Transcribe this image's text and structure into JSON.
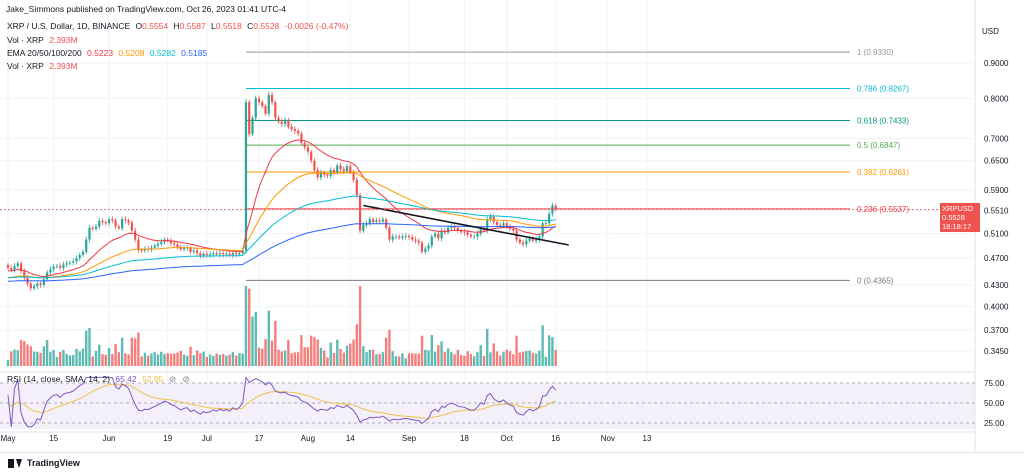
{
  "header": {
    "published": "Jake_Simmons published on TradingView.com, Oct 26, 2023 01:41 UTC-4",
    "symbol": "XRP / U.S. Dollar, 1D, BINANCE",
    "ohlc": {
      "o_label": "O",
      "o": "0.5554",
      "h_label": "H",
      "h": "0.5587",
      "l_label": "L",
      "l": "0.5518",
      "c_label": "C",
      "c": "0.5528",
      "change": "-0.0026 (-0.47%)"
    },
    "vol_label": "Vol · XRP",
    "vol_value": "2.393M",
    "ema_label": "EMA 20/50/100/200",
    "ema_values": [
      "0.5223",
      "0.5208",
      "0.5282",
      "0.5185"
    ],
    "vol2_label": "Vol · XRP",
    "vol2_value": "2.393M",
    "rsi_label": "RSI (14, close, SMA, 14, 2)",
    "rsi_value": "65.42",
    "rsi_ma": "52.95"
  },
  "price_axis": {
    "currency": "USD",
    "current_symbol": "XRPUSD",
    "current_price": "0.5528",
    "countdown": "18:18:17"
  },
  "footer": {
    "brand": "TradingView"
  },
  "colors": {
    "up": "#26a69a",
    "down": "#ef5350",
    "ema20": "#f23645",
    "ema50": "#ff9800",
    "ema100": "#00bcd4",
    "ema200": "#2962ff",
    "rsi": "#7e57c2",
    "rsi_ma": "#f0c24a"
  },
  "chart_data": {
    "type": "candlestick",
    "x_start": "2023-05-01",
    "interval": "1D",
    "y_scale": "log",
    "y_ticks": [
      0.9,
      0.8,
      0.7,
      0.65,
      0.59,
      0.551,
      0.51,
      0.47,
      0.43,
      0.4,
      0.37,
      0.345
    ],
    "y_tick_labels": [
      "0.9000",
      "0.8000",
      "0.7000",
      "0.6500",
      "0.5900",
      "0.5510",
      "0.5100",
      "0.4700",
      "0.4300",
      "0.4000",
      "0.3700",
      "0.3450"
    ],
    "x_ticks": [
      {
        "label": "May",
        "date": "2023-05-01"
      },
      {
        "label": "15",
        "date": "2023-05-15"
      },
      {
        "label": "Jun",
        "date": "2023-06-01"
      },
      {
        "label": "19",
        "date": "2023-06-19"
      },
      {
        "label": "Jul",
        "date": "2023-07-01"
      },
      {
        "label": "17",
        "date": "2023-07-17"
      },
      {
        "label": "Aug",
        "date": "2023-08-01"
      },
      {
        "label": "14",
        "date": "2023-08-14"
      },
      {
        "label": "Sep",
        "date": "2023-09-01"
      },
      {
        "label": "18",
        "date": "2023-09-18"
      },
      {
        "label": "Oct",
        "date": "2023-10-01"
      },
      {
        "label": "16",
        "date": "2023-10-16"
      },
      {
        "label": "Nov",
        "date": "2023-11-01"
      },
      {
        "label": "13",
        "date": "2023-11-13"
      }
    ],
    "closes": [
      0.455,
      0.452,
      0.458,
      0.462,
      0.45,
      0.44,
      0.432,
      0.425,
      0.428,
      0.432,
      0.43,
      0.438,
      0.448,
      0.453,
      0.457,
      0.458,
      0.455,
      0.46,
      0.462,
      0.463,
      0.465,
      0.47,
      0.475,
      0.48,
      0.5,
      0.52,
      0.518,
      0.522,
      0.532,
      0.53,
      0.528,
      0.535,
      0.533,
      0.522,
      0.519,
      0.535,
      0.533,
      0.529,
      0.515,
      0.5,
      0.483,
      0.482,
      0.485,
      0.484,
      0.487,
      0.49,
      0.493,
      0.496,
      0.5,
      0.498,
      0.494,
      0.492,
      0.488,
      0.484,
      0.486,
      0.487,
      0.48,
      0.482,
      0.478,
      0.474,
      0.477,
      0.475,
      0.476,
      0.478,
      0.476,
      0.478,
      0.476,
      0.477,
      0.475,
      0.478,
      0.476,
      0.478,
      0.482,
      0.79,
      0.71,
      0.75,
      0.8,
      0.79,
      0.78,
      0.76,
      0.81,
      0.79,
      0.75,
      0.74,
      0.735,
      0.745,
      0.728,
      0.722,
      0.718,
      0.712,
      0.69,
      0.68,
      0.67,
      0.65,
      0.63,
      0.615,
      0.625,
      0.62,
      0.618,
      0.63,
      0.625,
      0.64,
      0.632,
      0.628,
      0.638,
      0.625,
      0.61,
      0.58,
      0.515,
      0.525,
      0.528,
      0.535,
      0.53,
      0.533,
      0.531,
      0.535,
      0.52,
      0.5,
      0.505,
      0.505,
      0.503,
      0.505,
      0.506,
      0.504,
      0.5,
      0.498,
      0.495,
      0.48,
      0.485,
      0.49,
      0.505,
      0.51,
      0.502,
      0.515,
      0.512,
      0.52,
      0.523,
      0.52,
      0.515,
      0.513,
      0.512,
      0.508,
      0.505,
      0.505,
      0.51,
      0.518,
      0.515,
      0.535,
      0.54,
      0.53,
      0.525,
      0.524,
      0.528,
      0.522,
      0.518,
      0.515,
      0.5,
      0.495,
      0.492,
      0.498,
      0.502,
      0.498,
      0.5,
      0.505,
      0.528,
      0.528,
      0.545,
      0.56,
      0.5528
    ],
    "fib_levels": [
      {
        "ratio": "1",
        "price": 0.933,
        "label": "1 (0.9330)",
        "color": "#9598a1"
      },
      {
        "ratio": "0.786",
        "price": 0.8267,
        "label": "0.786 (0.8267)",
        "color": "#00bcd4"
      },
      {
        "ratio": "0.618",
        "price": 0.7433,
        "label": "0.618 (0.7433)",
        "color": "#089981"
      },
      {
        "ratio": "0.5",
        "price": 0.6847,
        "label": "0.5 (0.6847)",
        "color": "#4caf50"
      },
      {
        "ratio": "0.382",
        "price": 0.6261,
        "label": "0.382 (0.6261)",
        "color": "#ff9800"
      },
      {
        "ratio": "0.236",
        "price": 0.5537,
        "label": "0.236 (0.5537)",
        "color": "#f23645"
      },
      {
        "ratio": "0",
        "price": 0.4365,
        "label": "0 (0.4365)",
        "color": "#787b86"
      }
    ],
    "trendline": [
      {
        "date": "2023-08-18",
        "price": 0.56
      },
      {
        "date": "2023-10-20",
        "price": 0.491
      }
    ],
    "ema_last": {
      "ema20": 0.5223,
      "ema50": 0.5208,
      "ema100": 0.5282,
      "ema200": 0.5185
    },
    "rsi": {
      "last": 65.42,
      "ma_last": 52.95,
      "levels": [
        75,
        50,
        25
      ],
      "level_labels": [
        "75.00",
        "50.00",
        "25.00"
      ]
    },
    "volume_last": "2.393M"
  }
}
